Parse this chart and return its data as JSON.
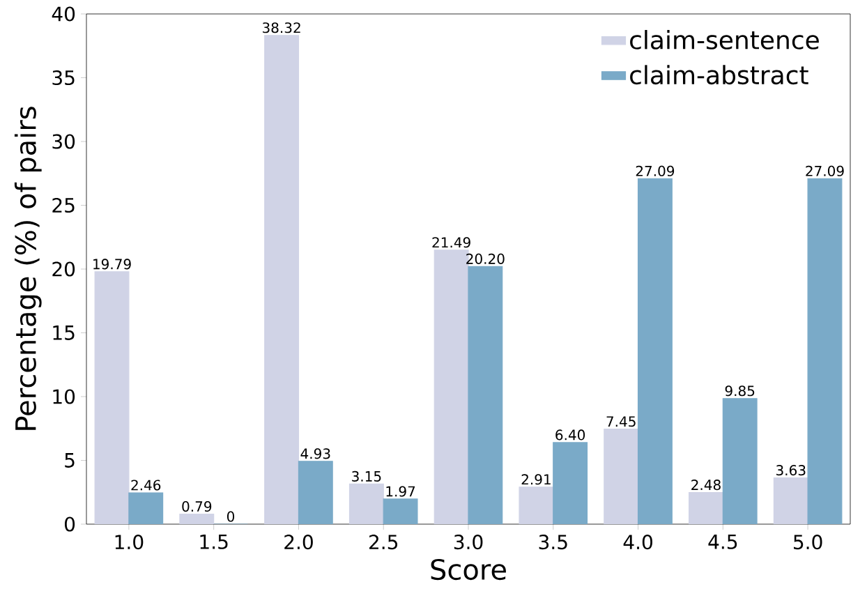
{
  "chart_data": {
    "type": "bar",
    "xlabel": "Score",
    "ylabel": "Percentage (%) of pairs",
    "categories": [
      "1.0",
      "1.5",
      "2.0",
      "2.5",
      "3.0",
      "3.5",
      "4.0",
      "4.5",
      "5.0"
    ],
    "series": [
      {
        "name": "claim-sentence",
        "color": "#d0d3e6",
        "values": [
          19.79,
          0.79,
          38.32,
          3.15,
          21.49,
          2.91,
          7.45,
          2.48,
          3.63
        ],
        "value_labels": [
          "19.79",
          "0.79",
          "38.32",
          "3.15",
          "21.49",
          "2.91",
          "7.45",
          "2.48",
          "3.63"
        ]
      },
      {
        "name": "claim-abstract",
        "color": "#7aaac8",
        "values": [
          2.46,
          0,
          4.93,
          1.97,
          20.2,
          6.4,
          27.09,
          9.85,
          27.09
        ],
        "value_labels": [
          "2.46",
          "0",
          "4.93",
          "1.97",
          "20.20",
          "6.40",
          "27.09",
          "9.85",
          "27.09"
        ]
      }
    ],
    "ylim": [
      0,
      40
    ],
    "yticks": [
      0,
      5,
      10,
      15,
      20,
      25,
      30,
      35,
      40
    ],
    "legend": "top right",
    "grid": false
  }
}
